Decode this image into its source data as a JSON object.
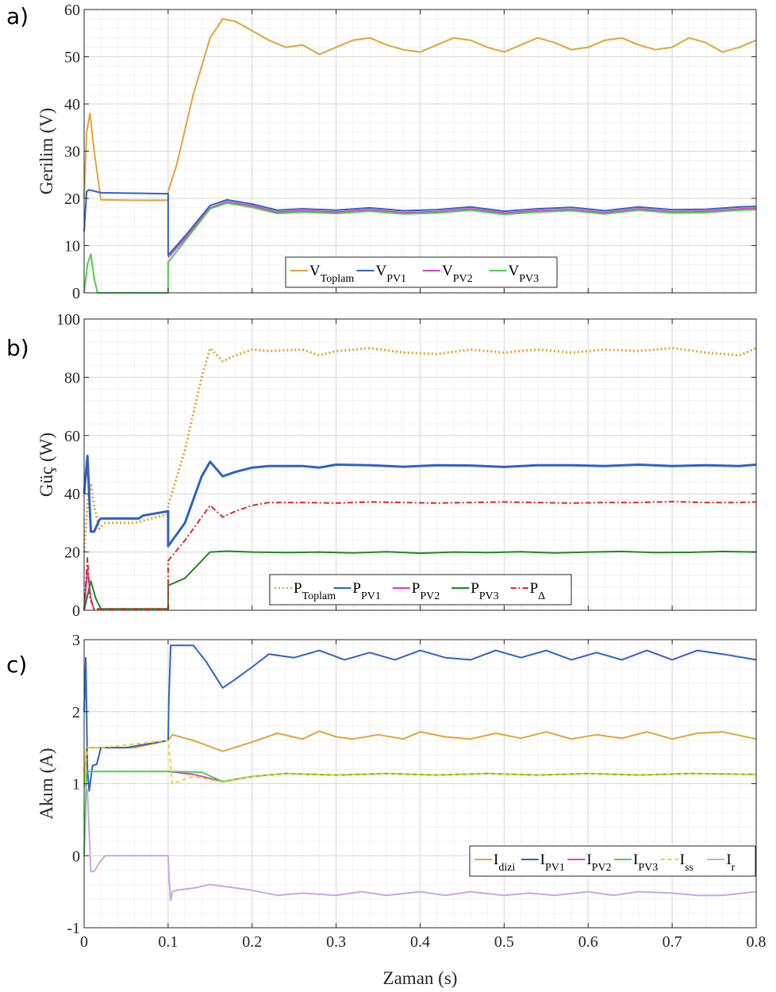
{
  "chart_data": [
    {
      "panel": "a)",
      "type": "line",
      "xlabel": "",
      "ylabel": "Gerilim (V)",
      "xlim": [
        0,
        0.8
      ],
      "ylim": [
        0,
        60
      ],
      "yticks": [
        0,
        10,
        20,
        30,
        40,
        50,
        60
      ],
      "grid": true,
      "legend_position": "bottom-center",
      "series": [
        {
          "name": "V",
          "sub": "Toplam",
          "color": "#E0A634",
          "dash": "",
          "x": [
            0,
            0.003,
            0.007,
            0.012,
            0.02,
            0.06,
            0.1,
            0.1,
            0.11,
            0.13,
            0.15,
            0.165,
            0.18,
            0.2,
            0.22,
            0.24,
            0.26,
            0.28,
            0.3,
            0.32,
            0.34,
            0.36,
            0.38,
            0.4,
            0.42,
            0.44,
            0.46,
            0.48,
            0.5,
            0.52,
            0.54,
            0.56,
            0.58,
            0.6,
            0.62,
            0.64,
            0.66,
            0.68,
            0.7,
            0.72,
            0.74,
            0.76,
            0.78,
            0.8
          ],
          "y": [
            20,
            34,
            38,
            30,
            19.7,
            19.6,
            19.6,
            21.5,
            27,
            42,
            54,
            58,
            57.5,
            55.5,
            53.5,
            52,
            52.5,
            50.5,
            52,
            53.5,
            54,
            52.5,
            51.5,
            51,
            52.5,
            54,
            53.5,
            52,
            51,
            52.5,
            54,
            53,
            51.5,
            52,
            53.5,
            54,
            52.5,
            51.5,
            52,
            54,
            53,
            51,
            52,
            53.5
          ]
        },
        {
          "name": "V",
          "sub": "PV1",
          "color": "#2F62C8",
          "dash": "",
          "x": [
            0,
            0.003,
            0.006,
            0.02,
            0.1,
            0.1,
            0.12,
            0.15,
            0.17,
            0.2,
            0.23,
            0.26,
            0.3,
            0.34,
            0.38,
            0.42,
            0.46,
            0.5,
            0.54,
            0.58,
            0.62,
            0.66,
            0.7,
            0.74,
            0.78,
            0.8
          ],
          "y": [
            13,
            21.5,
            21.8,
            21.2,
            21,
            8,
            12,
            18.5,
            19.7,
            18.8,
            17.5,
            17.8,
            17.5,
            18,
            17.4,
            17.6,
            18.2,
            17.3,
            17.8,
            18.1,
            17.4,
            18.2,
            17.6,
            17.7,
            18.2,
            18.3
          ]
        },
        {
          "name": "V",
          "sub": "PV2",
          "color": "#E040C8",
          "dash": "",
          "x": [
            0.1,
            0.12,
            0.15,
            0.17,
            0.2,
            0.23,
            0.26,
            0.3,
            0.34,
            0.38,
            0.42,
            0.46,
            0.5,
            0.54,
            0.58,
            0.62,
            0.66,
            0.7,
            0.74,
            0.78,
            0.8
          ],
          "y": [
            7.5,
            11.5,
            18,
            19.3,
            18.4,
            17.1,
            17.4,
            17.1,
            17.6,
            17,
            17.2,
            17.8,
            16.9,
            17.4,
            17.7,
            17,
            17.8,
            17.2,
            17.3,
            17.8,
            17.9
          ]
        },
        {
          "name": "V",
          "sub": "PV3",
          "color": "#4CD14C",
          "dash": "",
          "x": [
            0,
            0.004,
            0.008,
            0.012,
            0.016,
            0.1,
            0.1,
            0.12,
            0.15,
            0.17,
            0.2,
            0.23,
            0.26,
            0.3,
            0.34,
            0.38,
            0.42,
            0.46,
            0.5,
            0.54,
            0.58,
            0.62,
            0.66,
            0.7,
            0.74,
            0.78,
            0.8
          ],
          "y": [
            0,
            6,
            8.2,
            3,
            0,
            0,
            6.5,
            11,
            17.8,
            19,
            18.1,
            16.8,
            17.1,
            16.8,
            17.3,
            16.7,
            16.9,
            17.5,
            16.6,
            17.1,
            17.4,
            16.7,
            17.5,
            16.9,
            17,
            17.5,
            17.6
          ]
        }
      ]
    },
    {
      "panel": "b)",
      "type": "line",
      "xlabel": "",
      "ylabel": "Güç (W)",
      "xlim": [
        0,
        0.8
      ],
      "ylim": [
        0,
        100
      ],
      "yticks": [
        0,
        20,
        40,
        60,
        80,
        100
      ],
      "grid": true,
      "legend_position": "bottom-center",
      "series": [
        {
          "name": "P",
          "sub": "Toplam",
          "color": "#E0A634",
          "dash": "2,3",
          "x": [
            0,
            0.005,
            0.008,
            0.012,
            0.018,
            0.025,
            0.06,
            0.1,
            0.1,
            0.12,
            0.14,
            0.15,
            0.165,
            0.18,
            0.2,
            0.22,
            0.26,
            0.28,
            0.3,
            0.34,
            0.38,
            0.42,
            0.46,
            0.5,
            0.54,
            0.58,
            0.62,
            0.66,
            0.7,
            0.74,
            0.78,
            0.8
          ],
          "y": [
            20,
            40,
            43,
            36,
            28,
            30,
            30,
            33,
            36,
            55,
            80,
            90,
            85.5,
            87.5,
            89.5,
            89,
            89.5,
            87.5,
            89,
            90,
            88.5,
            88,
            89.5,
            88.5,
            89.5,
            88.5,
            89.5,
            89,
            90,
            88.5,
            87.5,
            90
          ]
        },
        {
          "name": "P",
          "sub": "PV1",
          "color": "#2F62C8",
          "dash": "",
          "x": [
            0,
            0.004,
            0.008,
            0.012,
            0.018,
            0.02,
            0.065,
            0.07,
            0.1,
            0.1,
            0.12,
            0.14,
            0.15,
            0.165,
            0.18,
            0.2,
            0.22,
            0.26,
            0.28,
            0.3,
            0.34,
            0.38,
            0.42,
            0.46,
            0.5,
            0.54,
            0.58,
            0.62,
            0.66,
            0.7,
            0.74,
            0.78,
            0.8
          ],
          "y": [
            40,
            53,
            27,
            27,
            31,
            31.5,
            31.5,
            32.5,
            34,
            22,
            30,
            46,
            51,
            46,
            47.5,
            49,
            49.5,
            49.5,
            49,
            50,
            49.8,
            49.3,
            49.8,
            49.7,
            49.2,
            49.8,
            49.8,
            49.5,
            50,
            49.5,
            49.8,
            49.5,
            50
          ]
        },
        {
          "name": "P",
          "sub": "PV2",
          "color": "#E040C8",
          "dash": "",
          "x": [
            0,
            0.004,
            0.008,
            0.012
          ],
          "y": [
            0,
            14,
            4,
            0
          ]
        },
        {
          "name": "P",
          "sub": "PV3",
          "color": "#1E8A1E",
          "dash": "",
          "x": [
            0,
            0.004,
            0.008,
            0.014,
            0.02,
            0.1,
            0.1,
            0.12,
            0.15,
            0.17,
            0.2,
            0.24,
            0.28,
            0.32,
            0.36,
            0.4,
            0.44,
            0.48,
            0.52,
            0.56,
            0.6,
            0.64,
            0.68,
            0.72,
            0.76,
            0.8
          ],
          "y": [
            0,
            5,
            10,
            4,
            0.5,
            0.5,
            8.5,
            11,
            20,
            20.3,
            20,
            19.8,
            20,
            19.7,
            20.1,
            19.6,
            20,
            19.8,
            20.1,
            19.7,
            20,
            20.2,
            19.8,
            19.9,
            20.2,
            20
          ]
        },
        {
          "name": "P",
          "sub": "Δ",
          "color": "#E0282A",
          "dash": "7,3,2,3",
          "x": [
            0,
            0.004,
            0.007,
            0.012,
            0.02,
            0.1,
            0.1,
            0.12,
            0.14,
            0.15,
            0.165,
            0.18,
            0.2,
            0.22,
            0.26,
            0.3,
            0.34,
            0.38,
            0.42,
            0.46,
            0.5,
            0.54,
            0.58,
            0.62,
            0.66,
            0.7,
            0.74,
            0.78,
            0.8
          ],
          "y": [
            0,
            18,
            4,
            0.5,
            0.5,
            0.5,
            17,
            24,
            32,
            36,
            32,
            34,
            36,
            37,
            37,
            36.8,
            37.2,
            37,
            36.8,
            37,
            37.2,
            37,
            36.8,
            37,
            37,
            37.3,
            37,
            37,
            37.2
          ]
        }
      ]
    },
    {
      "panel": "c)",
      "type": "line",
      "xlabel": "Zaman (s)",
      "ylabel": "Akım (A)",
      "xlim": [
        0,
        0.8
      ],
      "ylim": [
        -1,
        3
      ],
      "yticks": [
        -1,
        0,
        1,
        2,
        3
      ],
      "xticks": [
        0,
        0.1,
        0.2,
        0.3,
        0.4,
        0.5,
        0.6,
        0.7,
        0.8
      ],
      "grid": true,
      "legend_position": "bottom-right",
      "series": [
        {
          "name": "I",
          "sub": "dizi",
          "color": "#E0A634",
          "dash": "",
          "x": [
            0,
            0.003,
            0.006,
            0.01,
            0.06,
            0.1,
            0.105,
            0.13,
            0.165,
            0.2,
            0.23,
            0.26,
            0.28,
            0.3,
            0.32,
            0.35,
            0.38,
            0.4,
            0.43,
            0.46,
            0.49,
            0.52,
            0.55,
            0.58,
            0.61,
            0.64,
            0.67,
            0.7,
            0.73,
            0.76,
            0.8
          ],
          "y": [
            1,
            1.5,
            1.5,
            1.5,
            1.5,
            1.6,
            1.68,
            1.6,
            1.45,
            1.58,
            1.7,
            1.62,
            1.73,
            1.65,
            1.62,
            1.68,
            1.62,
            1.72,
            1.65,
            1.62,
            1.7,
            1.63,
            1.72,
            1.62,
            1.68,
            1.63,
            1.72,
            1.62,
            1.7,
            1.72,
            1.62
          ]
        },
        {
          "name": "I",
          "sub": "PV1",
          "color": "#2F62C8",
          "dash": "",
          "x": [
            0,
            0.002,
            0.004,
            0.006,
            0.01,
            0.015,
            0.02,
            0.05,
            0.1,
            0.101,
            0.103,
            0.13,
            0.145,
            0.165,
            0.18,
            0.2,
            0.22,
            0.25,
            0.28,
            0.31,
            0.34,
            0.37,
            0.4,
            0.43,
            0.46,
            0.49,
            0.52,
            0.55,
            0.58,
            0.61,
            0.64,
            0.67,
            0.7,
            0.73,
            0.76,
            0.8
          ],
          "y": [
            2,
            2.75,
            1.2,
            0.9,
            1.25,
            1.27,
            1.5,
            1.5,
            1.6,
            2.2,
            2.92,
            2.92,
            2.7,
            2.33,
            2.45,
            2.62,
            2.8,
            2.75,
            2.85,
            2.72,
            2.82,
            2.72,
            2.85,
            2.75,
            2.72,
            2.85,
            2.75,
            2.85,
            2.72,
            2.82,
            2.72,
            2.85,
            2.72,
            2.85,
            2.8,
            2.72
          ]
        },
        {
          "name": "I",
          "sub": "PV2",
          "color": "#E040C8",
          "dash": "",
          "x": [
            0.1,
            0.13,
            0.165,
            0.2,
            0.24,
            0.3,
            0.36,
            0.42,
            0.48,
            0.54,
            0.6,
            0.66,
            0.72,
            0.8
          ],
          "y": [
            1.17,
            1.13,
            1.03,
            1.1,
            1.14,
            1.12,
            1.14,
            1.12,
            1.14,
            1.12,
            1.14,
            1.12,
            1.14,
            1.13
          ]
        },
        {
          "name": "I",
          "sub": "PV3",
          "color": "#4CD14C",
          "dash": "",
          "x": [
            0,
            0.003,
            0.006,
            0.02,
            0.1,
            0.14,
            0.165,
            0.2,
            0.24,
            0.3,
            0.36,
            0.42,
            0.48,
            0.54,
            0.6,
            0.66,
            0.72,
            0.8
          ],
          "y": [
            0,
            1.17,
            1.17,
            1.17,
            1.17,
            1.16,
            1.03,
            1.1,
            1.14,
            1.12,
            1.14,
            1.12,
            1.14,
            1.12,
            1.14,
            1.12,
            1.14,
            1.13
          ]
        },
        {
          "name": "I",
          "sub": "ss",
          "color": "#F4D21E",
          "dash": "5,4",
          "x": [
            0,
            0.004,
            0.008,
            0.02,
            0.1,
            0.105,
            0.13,
            0.165,
            0.2,
            0.24,
            0.3,
            0.36,
            0.42,
            0.48,
            0.54,
            0.6,
            0.66,
            0.72,
            0.8
          ],
          "y": [
            1,
            1.5,
            1.5,
            1.5,
            1.6,
            1.0,
            1.1,
            1.02,
            1.1,
            1.14,
            1.12,
            1.14,
            1.12,
            1.14,
            1.12,
            1.14,
            1.12,
            1.14,
            1.13
          ]
        },
        {
          "name": "I",
          "sub": "r",
          "color": "#C9A6E8",
          "dash": "",
          "x": [
            0,
            0.004,
            0.008,
            0.012,
            0.018,
            0.025,
            0.06,
            0.1,
            0.101,
            0.103,
            0.105,
            0.11,
            0.13,
            0.15,
            0.2,
            0.23,
            0.26,
            0.3,
            0.33,
            0.36,
            0.4,
            0.43,
            0.46,
            0.5,
            0.53,
            0.56,
            0.6,
            0.63,
            0.66,
            0.7,
            0.73,
            0.76,
            0.8
          ],
          "y": [
            1,
            0.9,
            -0.22,
            -0.22,
            -0.1,
            0,
            0,
            0,
            -0.3,
            -0.62,
            -0.5,
            -0.48,
            -0.45,
            -0.4,
            -0.48,
            -0.55,
            -0.52,
            -0.55,
            -0.5,
            -0.55,
            -0.5,
            -0.55,
            -0.5,
            -0.55,
            -0.52,
            -0.55,
            -0.5,
            -0.55,
            -0.5,
            -0.52,
            -0.55,
            -0.55,
            -0.5
          ]
        }
      ]
    }
  ]
}
